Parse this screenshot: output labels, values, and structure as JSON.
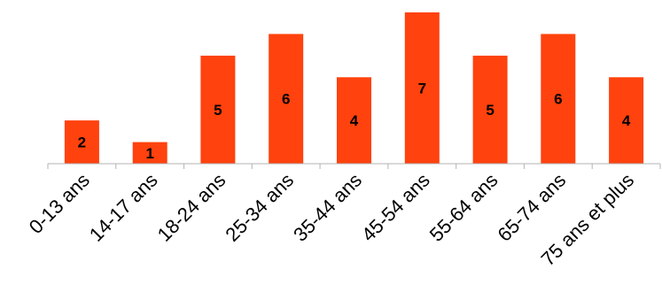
{
  "chart_data": {
    "type": "bar",
    "title": "",
    "xlabel": "",
    "ylabel": "",
    "categories": [
      "0-13 ans",
      "14-17 ans",
      "18-24 ans",
      "25-34 ans",
      "35-44 ans",
      "45-54 ans",
      "55-64 ans",
      "65-74 ans",
      "75 ans et plus"
    ],
    "values": [
      2,
      1,
      5,
      6,
      4,
      7,
      5,
      6,
      4
    ],
    "ylim": [
      0,
      7
    ],
    "bar_color": "#ff420e",
    "axis_color": "#b3b3b3",
    "grid": false,
    "legend": "none",
    "data_labels": true
  }
}
